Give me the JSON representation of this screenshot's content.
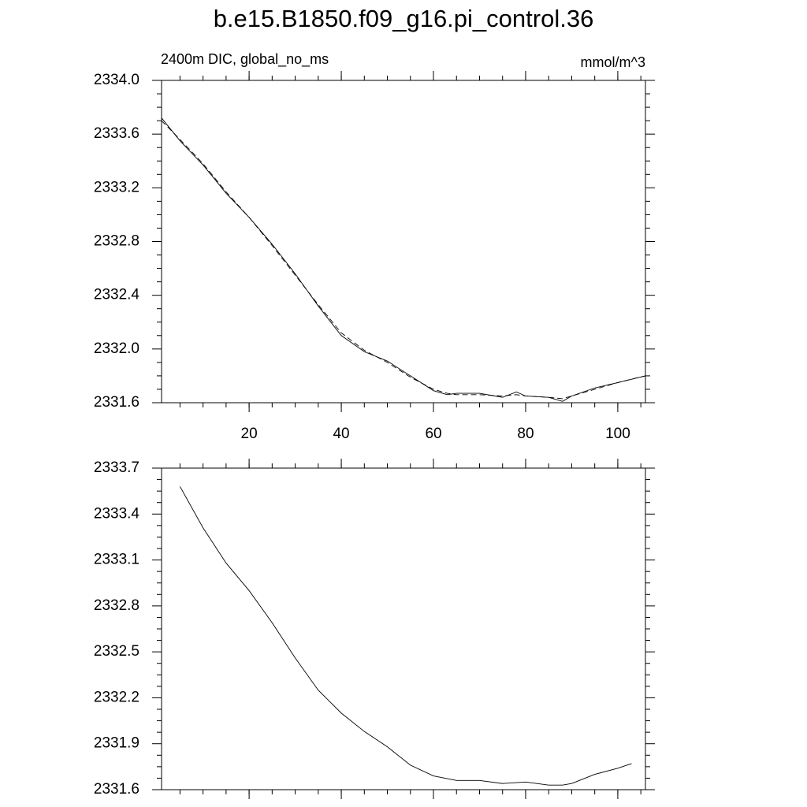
{
  "chart_data": [
    {
      "type": "line",
      "title": "b.e15.B1850.f09_g16.pi_control.36",
      "subtitle_left": "2400m DIC, global_no_ms",
      "subtitle_right": "mmol/m^3",
      "x": [
        1,
        5,
        10,
        15,
        20,
        25,
        30,
        35,
        40,
        45,
        50,
        55,
        60,
        63,
        65,
        70,
        75,
        78,
        80,
        85,
        88,
        90,
        95,
        100,
        106
      ],
      "series": [
        {
          "color": "#000000",
          "dash": false,
          "values": [
            2333.72,
            2333.55,
            2333.37,
            2333.16,
            2332.98,
            2332.78,
            2332.56,
            2332.32,
            2332.1,
            2331.98,
            2331.91,
            2331.8,
            2331.69,
            2331.66,
            2331.67,
            2331.67,
            2331.64,
            2331.68,
            2331.65,
            2331.64,
            2331.61,
            2331.65,
            2331.71,
            2331.75,
            2331.8
          ]
        },
        {
          "color": "#000000",
          "dash": true,
          "values": [
            2333.7,
            2333.56,
            2333.38,
            2333.17,
            2332.98,
            2332.77,
            2332.55,
            2332.33,
            2332.12,
            2331.99,
            2331.9,
            2331.79,
            2331.7,
            2331.67,
            2331.66,
            2331.66,
            2331.65,
            2331.66,
            2331.65,
            2331.64,
            2331.63,
            2331.65,
            2331.7,
            2331.75,
            2331.8
          ]
        }
      ],
      "xlim": [
        1,
        106
      ],
      "xticks": [
        20,
        40,
        60,
        80,
        100
      ],
      "ylim": [
        2331.6,
        2334.0
      ],
      "yticks": [
        2331.6,
        {
          "value": 2332.0,
          "label": "2332.0"
        },
        2332.4,
        2332.8,
        2333.2,
        2333.6,
        {
          "value": 2334.0,
          "label": "2334.0"
        }
      ]
    },
    {
      "type": "line",
      "x": [
        5,
        10,
        15,
        20,
        25,
        30,
        35,
        40,
        45,
        50,
        55,
        60,
        65,
        70,
        75,
        80,
        85,
        88,
        90,
        95,
        100,
        103
      ],
      "series": [
        {
          "color": "#000000",
          "dash": false,
          "values": [
            2333.58,
            2333.31,
            2333.08,
            2332.9,
            2332.69,
            2332.46,
            2332.25,
            2332.1,
            2331.98,
            2331.88,
            2331.76,
            2331.69,
            2331.66,
            2331.66,
            2331.64,
            2331.65,
            2331.63,
            2331.63,
            2331.64,
            2331.7,
            2331.74,
            2331.77
          ]
        }
      ],
      "xlim": [
        1,
        106
      ],
      "xticks": [
        20,
        40,
        60,
        80,
        100
      ],
      "ylim": [
        2331.6,
        2333.7
      ],
      "yticks": [
        2331.6,
        2331.9,
        2332.2,
        2332.5,
        2332.8,
        2333.1,
        2333.4,
        2333.7
      ]
    }
  ]
}
